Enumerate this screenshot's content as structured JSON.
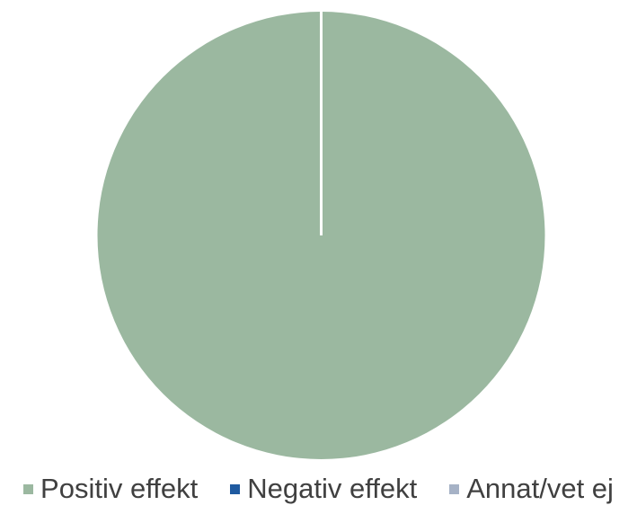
{
  "chart_data": {
    "type": "pie",
    "title": "",
    "slices": [
      {
        "name": "Positiv effekt",
        "value": 100,
        "color": "#9bb8a0"
      },
      {
        "name": "Negativ effekt",
        "value": 0,
        "color": "#1f5aa0"
      },
      {
        "name": "Annat/vet ej",
        "value": 0,
        "color": "#a6b2c6"
      }
    ],
    "legend": {
      "placement": "bottom",
      "items": [
        {
          "label": "Positiv effekt",
          "color": "#9bb8a0"
        },
        {
          "label": "Negativ effekt",
          "color": "#1f5aa0"
        },
        {
          "label": "Annat/vet ej",
          "color": "#a6b2c6"
        }
      ]
    }
  }
}
